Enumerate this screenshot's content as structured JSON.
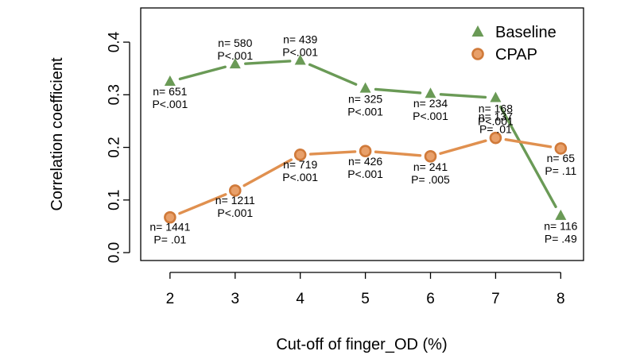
{
  "chart_data": {
    "type": "line",
    "xlabel": "Cut-off of finger_OD (%)",
    "ylabel": "Correlation coefficient",
    "x": [
      2,
      3,
      4,
      5,
      6,
      7,
      8
    ],
    "xlim": [
      1.55,
      8.35
    ],
    "ylim": [
      -0.015,
      0.465
    ],
    "yticks": [
      0.0,
      0.1,
      0.2,
      0.3,
      0.4
    ],
    "ytick_labels": [
      "0.0",
      "0.1",
      "0.2",
      "0.3",
      "0.4"
    ],
    "legend_position": "top-right",
    "series": [
      {
        "name": "Baseline",
        "color": "#6a9a56",
        "marker": "triangle",
        "values": [
          0.325,
          0.358,
          0.365,
          0.312,
          0.302,
          0.294,
          0.07
        ],
        "labels": [
          [
            "n= 651",
            "P<.001"
          ],
          [
            "n= 580",
            "P<.001"
          ],
          [
            "n= 439",
            "P<.001"
          ],
          [
            "n= 325",
            "P<.001"
          ],
          [
            "n= 234",
            "P<.001"
          ],
          [
            "n= 168",
            "P<.001"
          ],
          [
            "n= 116",
            "P= .49"
          ]
        ]
      },
      {
        "name": "CPAP",
        "color": "#e0904f",
        "marker": "circle",
        "values": [
          0.067,
          0.118,
          0.186,
          0.193,
          0.183,
          0.218,
          0.198
        ],
        "labels": [
          [
            "n= 1441",
            "P= .01"
          ],
          [
            "n= 1211",
            "P<.001"
          ],
          [
            "n= 719",
            "P<.001"
          ],
          [
            "n= 426",
            "P<.001"
          ],
          [
            "n= 241",
            "P= .005"
          ],
          [
            "n= 137",
            "P= .01"
          ],
          [
            "n= 65",
            "P= .11"
          ]
        ]
      }
    ]
  }
}
